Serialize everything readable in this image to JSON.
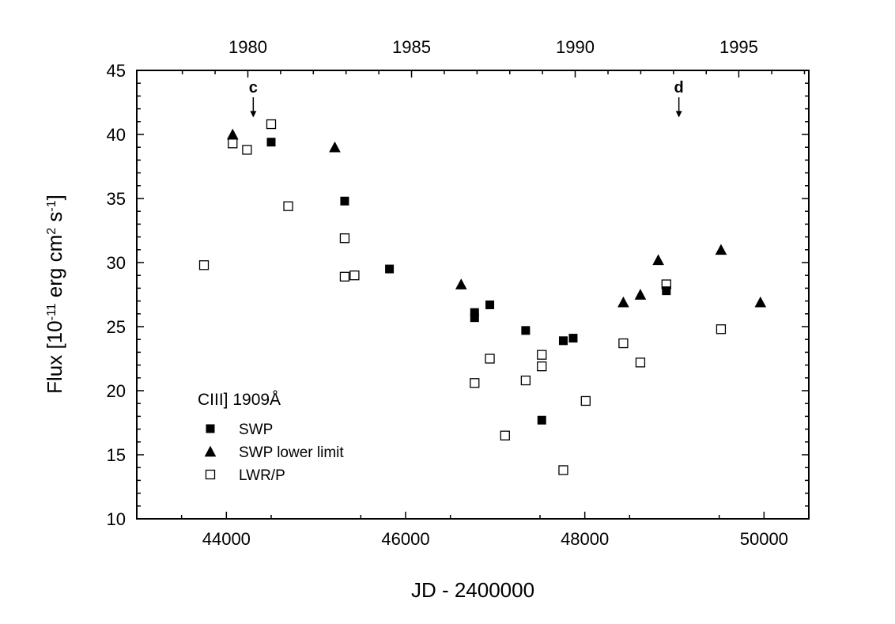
{
  "chart_data": {
    "type": "scatter",
    "title": "",
    "xlabel": "JD - 2400000",
    "ylabel": "Flux [10^-11 erg cm^2 s^-1]",
    "ylabel_parts": {
      "base": "Flux [10",
      "exp1": "-11",
      "mid": " erg cm",
      "exp2": "2",
      "mid2": " s",
      "exp3": "-1",
      "end": "]"
    },
    "xlim": [
      43000,
      50500
    ],
    "ylim": [
      10,
      45
    ],
    "x_ticks": [
      44000,
      46000,
      48000,
      50000
    ],
    "x_tick_labels": [
      "44000",
      "46000",
      "48000",
      "50000"
    ],
    "y_ticks": [
      10,
      15,
      20,
      25,
      30,
      35,
      40,
      45
    ],
    "y_tick_labels": [
      "10",
      "15",
      "20",
      "25",
      "30",
      "35",
      "40",
      "45"
    ],
    "top_axis": {
      "ticks_jd": [
        44239.5,
        46066.5,
        47892.5,
        49718.5
      ],
      "tick_labels": [
        "1980",
        "1985",
        "1990",
        "1995"
      ]
    },
    "legend_title": "CIII] 1909Å",
    "legend_position": "bottom-left",
    "grid": false,
    "series": [
      {
        "name": "SWP",
        "marker": "filled-square",
        "points": [
          {
            "x": 44500,
            "y": 39.4
          },
          {
            "x": 45320,
            "y": 34.8
          },
          {
            "x": 45820,
            "y": 29.5
          },
          {
            "x": 46770,
            "y": 26.1
          },
          {
            "x": 46770,
            "y": 25.7
          },
          {
            "x": 46940,
            "y": 26.7
          },
          {
            "x": 47340,
            "y": 24.7
          },
          {
            "x": 47520,
            "y": 17.7
          },
          {
            "x": 47760,
            "y": 23.9
          },
          {
            "x": 47870,
            "y": 24.1
          },
          {
            "x": 48910,
            "y": 27.8
          }
        ]
      },
      {
        "name": "SWP lower limit",
        "marker": "filled-triangle",
        "points": [
          {
            "x": 44070,
            "y": 40.0
          },
          {
            "x": 45210,
            "y": 39.0
          },
          {
            "x": 46620,
            "y": 28.3
          },
          {
            "x": 48430,
            "y": 26.9
          },
          {
            "x": 48620,
            "y": 27.5
          },
          {
            "x": 48820,
            "y": 30.2
          },
          {
            "x": 49520,
            "y": 31.0
          },
          {
            "x": 49960,
            "y": 26.9
          }
        ]
      },
      {
        "name": "LWR/P",
        "marker": "open-square",
        "points": [
          {
            "x": 43750,
            "y": 29.8
          },
          {
            "x": 44070,
            "y": 39.3
          },
          {
            "x": 44230,
            "y": 38.8
          },
          {
            "x": 44500,
            "y": 40.8
          },
          {
            "x": 44690,
            "y": 34.4
          },
          {
            "x": 45320,
            "y": 31.9
          },
          {
            "x": 45320,
            "y": 28.9
          },
          {
            "x": 45430,
            "y": 29.0
          },
          {
            "x": 46770,
            "y": 20.6
          },
          {
            "x": 46940,
            "y": 22.5
          },
          {
            "x": 47110,
            "y": 16.5
          },
          {
            "x": 47340,
            "y": 20.8
          },
          {
            "x": 47520,
            "y": 22.8
          },
          {
            "x": 47520,
            "y": 21.9
          },
          {
            "x": 47760,
            "y": 13.8
          },
          {
            "x": 48010,
            "y": 19.2
          },
          {
            "x": 48430,
            "y": 23.7
          },
          {
            "x": 48620,
            "y": 22.2
          },
          {
            "x": 48910,
            "y": 28.3
          },
          {
            "x": 49520,
            "y": 24.8
          }
        ]
      }
    ],
    "annotations": [
      {
        "label": "c",
        "x": 44300,
        "y_top": 42.9,
        "y_bottom": 41.4
      },
      {
        "label": "d",
        "x": 49050,
        "y_top": 42.9,
        "y_bottom": 41.4
      }
    ]
  }
}
